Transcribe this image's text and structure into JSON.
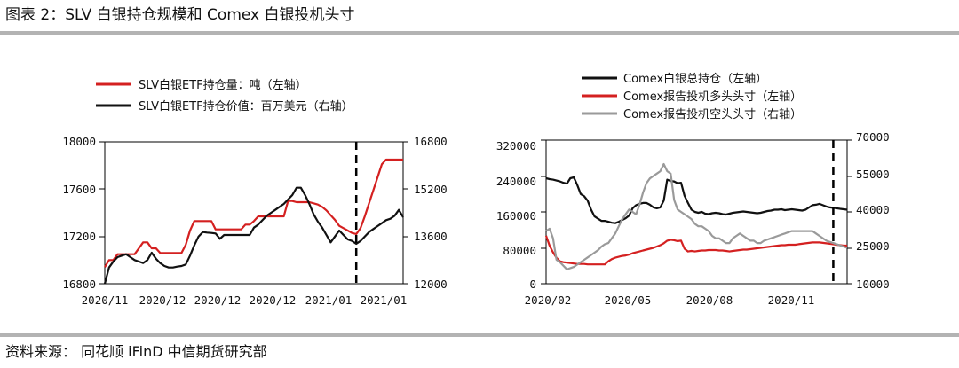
{
  "header": {
    "title": "图表 2：SLV 白银持仓规模和 Comex 白银投机头寸"
  },
  "footer": {
    "source": "资料来源： 同花顺 iFinD 中信期货研究部"
  },
  "colors": {
    "red": "#d42020",
    "black": "#111111",
    "gray": "#9a9a9a",
    "axis": "#000000"
  },
  "chart_data": [
    {
      "type": "line",
      "title": "",
      "x_labels": [
        "2020/11",
        "2020/12",
        "2020/12",
        "2020/12",
        "2021/01",
        "2021/01"
      ],
      "ylim": [
        16800,
        18000
      ],
      "y_ticks": [
        16800,
        17200,
        17600,
        18000
      ],
      "y2lim": [
        12000,
        16800
      ],
      "y2_ticks": [
        12000,
        13600,
        15200,
        16800
      ],
      "marker_index": 59,
      "series": [
        {
          "name": "SLV白银ETF持仓量：吨（左轴）",
          "axis": "left",
          "color": "red",
          "values": [
            16940,
            17000,
            17000,
            17050,
            17050,
            17050,
            17050,
            17050,
            17100,
            17150,
            17150,
            17100,
            17100,
            17060,
            17060,
            17060,
            17060,
            17060,
            17060,
            17130,
            17250,
            17330,
            17330,
            17330,
            17330,
            17330,
            17260,
            17260,
            17260,
            17260,
            17260,
            17260,
            17260,
            17300,
            17300,
            17330,
            17370,
            17370,
            17370,
            17370,
            17370,
            17370,
            17370,
            17500,
            17500,
            17490,
            17490,
            17490,
            17490,
            17480,
            17470,
            17450,
            17420,
            17380,
            17340,
            17290,
            17270,
            17250,
            17230,
            17220,
            17270,
            17370,
            17480,
            17590,
            17700,
            17810,
            17850,
            17850,
            17850,
            17850,
            17850
          ]
        },
        {
          "name": "SLV白银ETF持仓价值：百万美元（右轴）",
          "axis": "right",
          "color": "black",
          "values": [
            12000,
            12550,
            12750,
            12900,
            12950,
            13000,
            12900,
            12800,
            12750,
            12700,
            12800,
            13050,
            12850,
            12700,
            12600,
            12550,
            12550,
            12580,
            12600,
            12650,
            12950,
            13300,
            13600,
            13750,
            13730,
            13720,
            13700,
            13520,
            13650,
            13650,
            13650,
            13650,
            13650,
            13650,
            13650,
            13900,
            14000,
            14150,
            14300,
            14400,
            14500,
            14600,
            14700,
            14850,
            15000,
            15250,
            15250,
            15000,
            14700,
            14350,
            14100,
            13900,
            13650,
            13400,
            13600,
            13800,
            13650,
            13500,
            13450,
            13350,
            13450,
            13600,
            13750,
            13850,
            13950,
            14050,
            14150,
            14200,
            14300,
            14500,
            14250
          ]
        }
      ]
    },
    {
      "type": "line",
      "title": "",
      "x_labels": [
        "2020/02",
        "2020/05",
        "2020/08",
        "2020/11"
      ],
      "ylim": [
        0,
        320000
      ],
      "y_ticks": [
        0,
        80000,
        160000,
        240000,
        320000
      ],
      "y2lim": [
        10000,
        70000
      ],
      "y2_ticks": [
        10000,
        25000,
        40000,
        55000,
        70000
      ],
      "marker_index": 83,
      "series": [
        {
          "name": "Comex白银总持仓（左轴）",
          "axis": "left",
          "color": "black",
          "values": [
            235000,
            233000,
            232000,
            230000,
            228000,
            225000,
            223000,
            235000,
            237000,
            220000,
            200000,
            195000,
            185000,
            165000,
            150000,
            145000,
            140000,
            140000,
            138000,
            136000,
            135000,
            138000,
            142000,
            146000,
            152000,
            168000,
            175000,
            178000,
            180000,
            180000,
            176000,
            170000,
            168000,
            170000,
            185000,
            232000,
            229000,
            228000,
            224000,
            225000,
            196000,
            180000,
            165000,
            160000,
            158000,
            160000,
            156000,
            155000,
            157000,
            158000,
            157000,
            155000,
            154000,
            156000,
            158000,
            159000,
            160000,
            161000,
            160000,
            159000,
            158000,
            157000,
            158000,
            160000,
            162000,
            163000,
            165000,
            165000,
            166000,
            164000,
            165000,
            166000,
            165000,
            164000,
            163000,
            165000,
            170000,
            175000,
            176000,
            178000,
            175000,
            172000,
            170000,
            169000,
            168000,
            167000,
            166000,
            165000
          ]
        },
        {
          "name": "Comex报告投机多头头寸（左轴）",
          "axis": "left",
          "color": "red",
          "values": [
            107000,
            85000,
            70000,
            58000,
            50000,
            48000,
            47000,
            46000,
            45000,
            44000,
            44000,
            44000,
            43000,
            43000,
            43000,
            43000,
            43000,
            43000,
            50000,
            55000,
            58000,
            60000,
            62000,
            63000,
            65000,
            68000,
            70000,
            72000,
            74000,
            76000,
            78000,
            80000,
            83000,
            86000,
            90000,
            96000,
            98000,
            97000,
            95000,
            96000,
            78000,
            72000,
            73000,
            72000,
            73000,
            74000,
            74000,
            75000,
            75000,
            75000,
            74000,
            74000,
            73000,
            72000,
            73000,
            74000,
            75000,
            76000,
            76000,
            77000,
            78000,
            79000,
            80000,
            81000,
            82000,
            83000,
            84000,
            85000,
            86000,
            86000,
            87000,
            87000,
            87000,
            88000,
            89000,
            90000,
            91000,
            92000,
            92000,
            92000,
            91000,
            90000,
            89000,
            88000,
            87000,
            86000,
            85000,
            85000
          ]
        },
        {
          "name": "Comex报告投机空头头寸（右轴）",
          "axis": "right",
          "color": "gray",
          "values": [
            32000,
            33000,
            29000,
            20000,
            19000,
            17500,
            16000,
            16500,
            17000,
            18000,
            19000,
            20000,
            21000,
            22000,
            23000,
            24000,
            25500,
            26500,
            27000,
            29000,
            31000,
            34000,
            37000,
            39000,
            41000,
            40000,
            39000,
            43000,
            48000,
            52000,
            54000,
            55000,
            56000,
            57000,
            60000,
            57000,
            56000,
            45000,
            41000,
            40000,
            39000,
            38000,
            37000,
            35000,
            34000,
            34000,
            33000,
            32000,
            30000,
            29000,
            29000,
            28000,
            27000,
            27000,
            29000,
            30000,
            31000,
            30000,
            29000,
            28000,
            28000,
            27000,
            27000,
            28000,
            28500,
            29000,
            29500,
            30000,
            30500,
            31000,
            31500,
            32000,
            32000,
            32000,
            32000,
            32000,
            32000,
            32000,
            31000,
            30000,
            29000,
            28000,
            27500,
            27000,
            26500,
            26000,
            25500,
            25000
          ]
        }
      ]
    }
  ],
  "charts": [
    {
      "legend": [
        "SLV白银ETF持仓量：吨（左轴）",
        "SLV白银ETF持仓价值：百万美元（右轴）"
      ],
      "y_left_labels": [
        "18000",
        "17600",
        "17200",
        "16800"
      ],
      "y_right_labels": [
        "16800",
        "15200",
        "13600",
        "12000"
      ],
      "x_labels": [
        "2020/11",
        "2020/12",
        "2020/12",
        "2020/12",
        "2021/01",
        "2021/01"
      ]
    },
    {
      "legend": [
        "Comex白银总持仓（左轴）",
        "Comex报告投机多头头寸（左轴）",
        "Comex报告投机空头头寸（右轴）"
      ],
      "y_left_labels": [
        "320000",
        "240000",
        "160000",
        "80000",
        "0"
      ],
      "y_right_labels": [
        "70000",
        "55000",
        "40000",
        "25000",
        "10000"
      ],
      "x_labels": [
        "2020/02",
        "2020/05",
        "2020/08",
        "2020/11"
      ]
    }
  ]
}
